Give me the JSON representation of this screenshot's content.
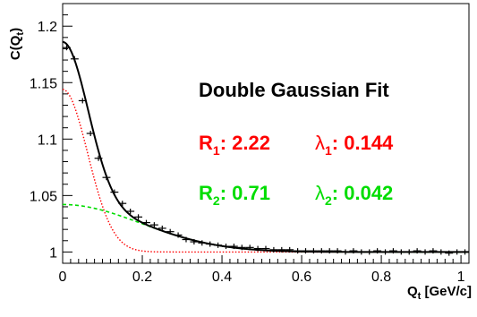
{
  "chart_data": {
    "type": "scatter",
    "title": "",
    "xlabel": {
      "main": "Q",
      "sub": "t",
      "rest": " [GeV/c]"
    },
    "ylabel": {
      "main": "C(Q",
      "sub": "t",
      "rest": ")"
    },
    "xlim": [
      0,
      1.02
    ],
    "ylim": [
      0.99,
      1.22
    ],
    "xticks": [
      {
        "value": 0,
        "label": "0"
      },
      {
        "value": 0.2,
        "label": "0.2"
      },
      {
        "value": 0.4,
        "label": "0.4"
      },
      {
        "value": 0.6,
        "label": "0.6"
      },
      {
        "value": 0.8,
        "label": "0.8"
      },
      {
        "value": 1.0,
        "label": "1"
      }
    ],
    "yticks": [
      {
        "value": 1.0,
        "label": "1"
      },
      {
        "value": 1.05,
        "label": "1.05"
      },
      {
        "value": 1.1,
        "label": "1.1"
      },
      {
        "value": 1.15,
        "label": "1.15"
      },
      {
        "value": 1.2,
        "label": "1.2"
      }
    ],
    "grid": false,
    "data_points": {
      "color": "#000000",
      "x": [
        0.01,
        0.03,
        0.05,
        0.07,
        0.09,
        0.11,
        0.13,
        0.15,
        0.17,
        0.19,
        0.21,
        0.23,
        0.25,
        0.27,
        0.29,
        0.31,
        0.33,
        0.35,
        0.37,
        0.39,
        0.41,
        0.43,
        0.45,
        0.47,
        0.49,
        0.51,
        0.53,
        0.55,
        0.57,
        0.59,
        0.61,
        0.63,
        0.65,
        0.67,
        0.69,
        0.71,
        0.73,
        0.75,
        0.77,
        0.79,
        0.81,
        0.83,
        0.85,
        0.87,
        0.89,
        0.91,
        0.93,
        0.95,
        0.97,
        0.99,
        1.01
      ],
      "y": [
        1.181,
        1.171,
        1.134,
        1.105,
        1.083,
        1.066,
        1.053,
        1.043,
        1.036,
        1.031,
        1.026,
        1.024,
        1.021,
        1.018,
        1.015,
        1.011,
        1.009,
        1.008,
        1.007,
        1.006,
        1.005,
        1.005,
        1.004,
        1.004,
        1.003,
        1.003,
        1.002,
        1.002,
        1.002,
        1.001,
        1.001,
        1.001,
        1.001,
        1.001,
        1.001,
        1.0,
        1.001,
        1.0,
        1.0,
        1.001,
        1.0,
        1.001,
        1.0,
        1.0,
        1.001,
        1.0,
        1.001,
        1.0,
        0.999,
        1.0,
        1.0
      ]
    },
    "fit_model": {
      "baseline": 1.0,
      "total_color": "#000000",
      "components": [
        {
          "lambda": 0.144,
          "R": 2.22,
          "color": "#ff0000",
          "style": "dotted"
        },
        {
          "lambda": 0.042,
          "R": 0.71,
          "color": "#00dd00",
          "style": "dashed"
        }
      ]
    },
    "annotations": [
      {
        "id": "title",
        "text": "Double Gaussian Fit",
        "color": "#000000"
      },
      {
        "id": "r1",
        "letter": "R",
        "sub": "1",
        "value": ":  2.22",
        "color": "#ff0000"
      },
      {
        "id": "lambda1",
        "letter": "λ",
        "sub": "1",
        "value": ": 0.144",
        "color": "#ff0000"
      },
      {
        "id": "r2",
        "letter": "R",
        "sub": "2",
        "value": ":  0.71",
        "color": "#00dd00"
      },
      {
        "id": "lambda2",
        "letter": "λ",
        "sub": "2",
        "value": ": 0.042",
        "color": "#00dd00"
      }
    ]
  }
}
